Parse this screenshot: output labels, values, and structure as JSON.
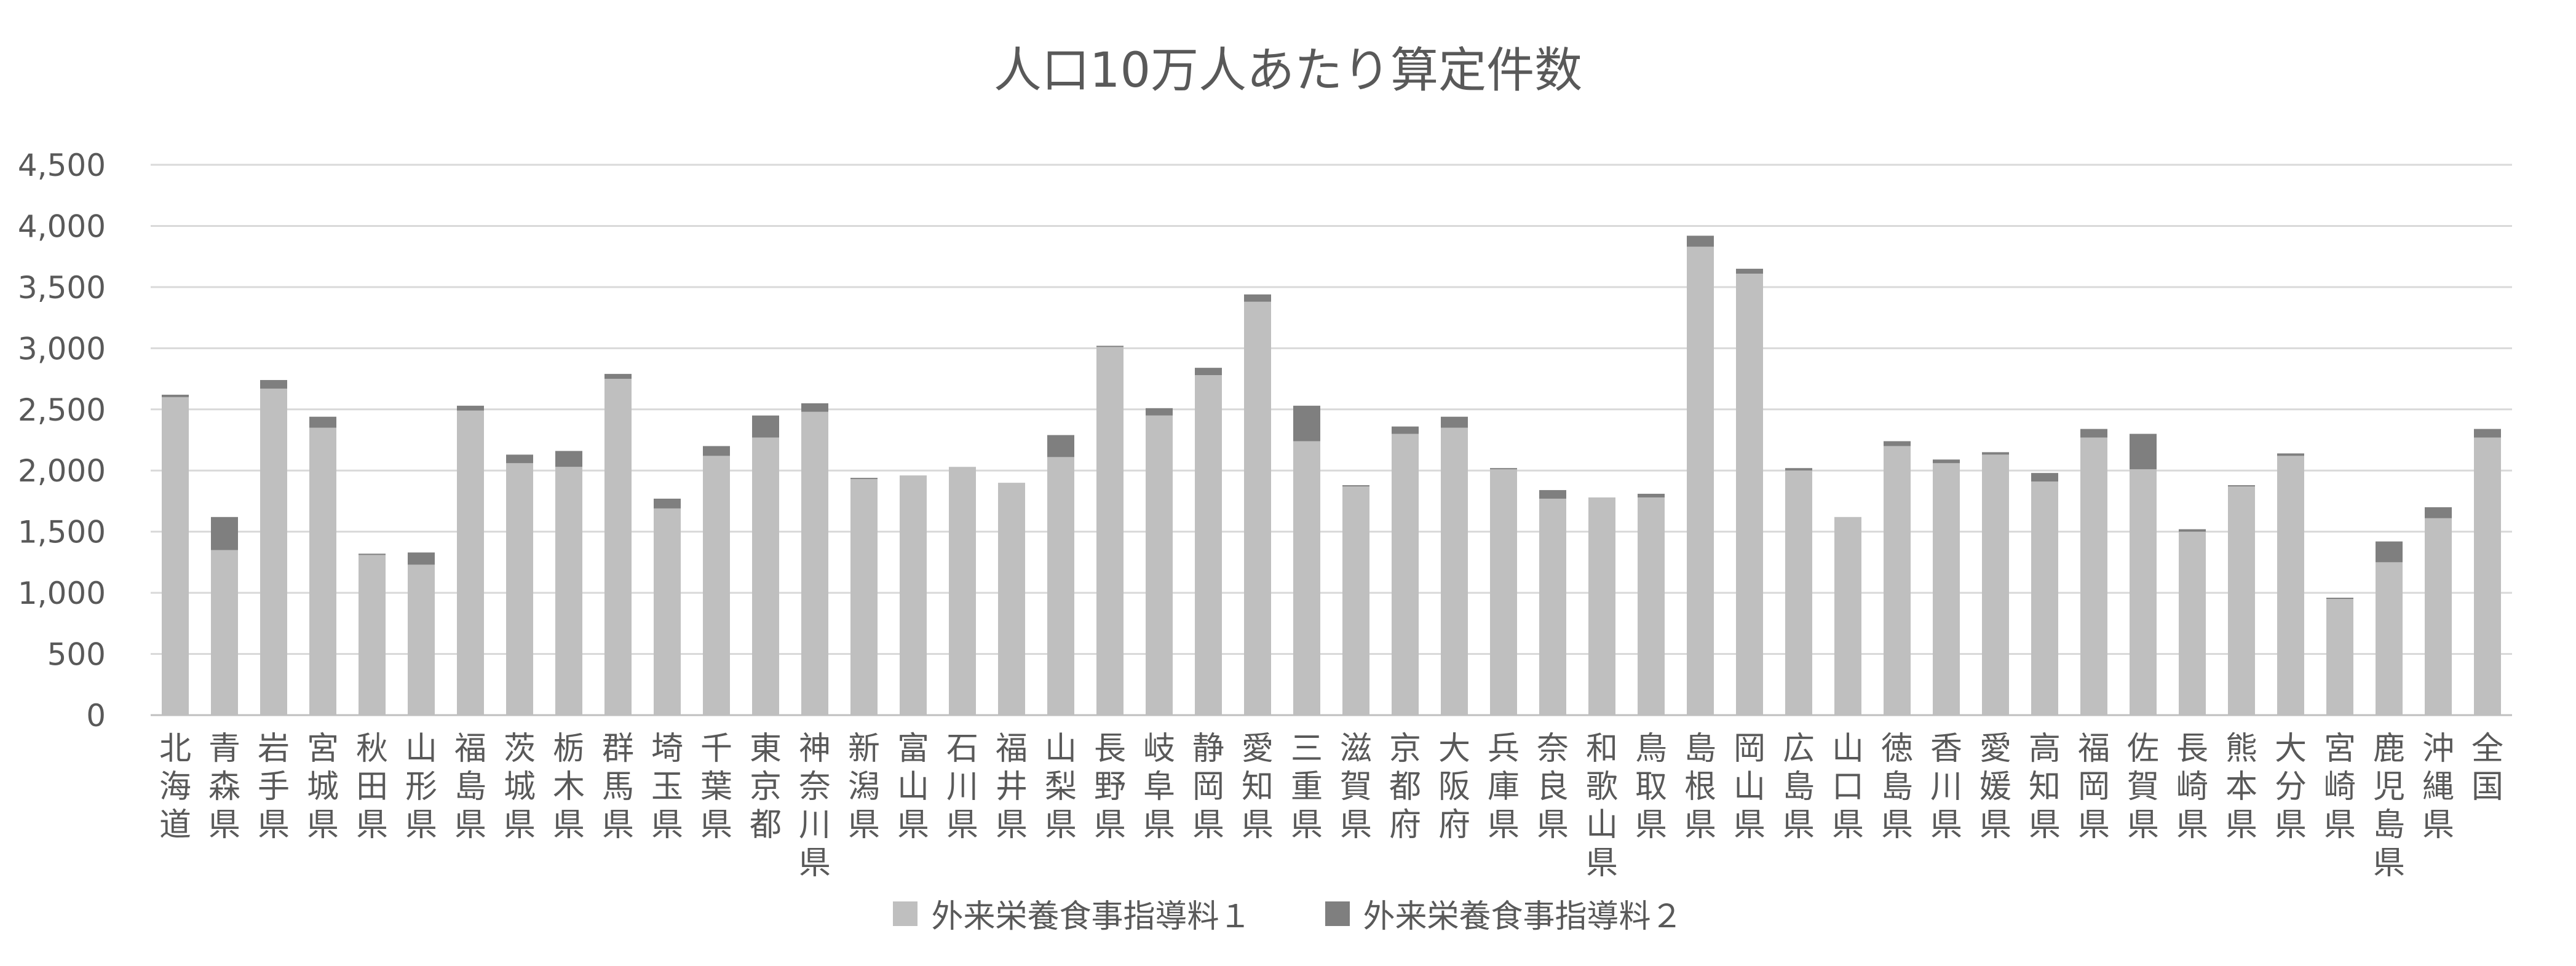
{
  "chart_data": {
    "type": "bar",
    "stacked": true,
    "title": "人口10万人あたり算定件数",
    "xlabel": "",
    "ylabel": "",
    "ylim": [
      0,
      4500
    ],
    "yticks": [
      0,
      500,
      1000,
      1500,
      2000,
      2500,
      3000,
      3500,
      4000,
      4500
    ],
    "ytick_labels": [
      "0",
      "500",
      "1,000",
      "1,500",
      "2,000",
      "2,500",
      "3,000",
      "3,500",
      "4,000",
      "4,500"
    ],
    "grid": true,
    "legend_position": "bottom",
    "categories": [
      "北海道",
      "青森県",
      "岩手県",
      "宮城県",
      "秋田県",
      "山形県",
      "福島県",
      "茨城県",
      "栃木県",
      "群馬県",
      "埼玉県",
      "千葉県",
      "東京都",
      "神奈川県",
      "新潟県",
      "富山県",
      "石川県",
      "福井県",
      "山梨県",
      "長野県",
      "岐阜県",
      "静岡県",
      "愛知県",
      "三重県",
      "滋賀県",
      "京都府",
      "大阪府",
      "兵庫県",
      "奈良県",
      "和歌山県",
      "鳥取県",
      "島根県",
      "岡山県",
      "広島県",
      "山口県",
      "徳島県",
      "香川県",
      "愛媛県",
      "高知県",
      "福岡県",
      "佐賀県",
      "長崎県",
      "熊本県",
      "大分県",
      "宮崎県",
      "鹿児島県",
      "沖縄県",
      "全国"
    ],
    "series": [
      {
        "name": "外来栄養食事指導料１",
        "color": "#bfbfbf",
        "values": [
          2600,
          1350,
          2670,
          2350,
          1310,
          1230,
          2490,
          2060,
          2030,
          2750,
          1690,
          2120,
          2270,
          2480,
          1930,
          1960,
          2030,
          1900,
          2110,
          3010,
          2450,
          2780,
          3380,
          2240,
          1870,
          2300,
          2350,
          2010,
          1770,
          1780,
          1780,
          3830,
          3610,
          2000,
          1620,
          2200,
          2060,
          2130,
          1910,
          2270,
          2010,
          1500,
          1870,
          2120,
          950,
          1250,
          1610,
          2270
        ]
      },
      {
        "name": "外来栄養食事指導料２",
        "color": "#7f7f7f",
        "values": [
          20,
          270,
          70,
          90,
          10,
          100,
          40,
          70,
          130,
          40,
          80,
          80,
          180,
          70,
          10,
          0,
          0,
          0,
          180,
          10,
          60,
          60,
          60,
          290,
          10,
          60,
          90,
          10,
          70,
          0,
          30,
          90,
          40,
          20,
          0,
          40,
          30,
          20,
          70,
          70,
          290,
          20,
          10,
          20,
          10,
          170,
          90,
          70
        ]
      }
    ]
  }
}
